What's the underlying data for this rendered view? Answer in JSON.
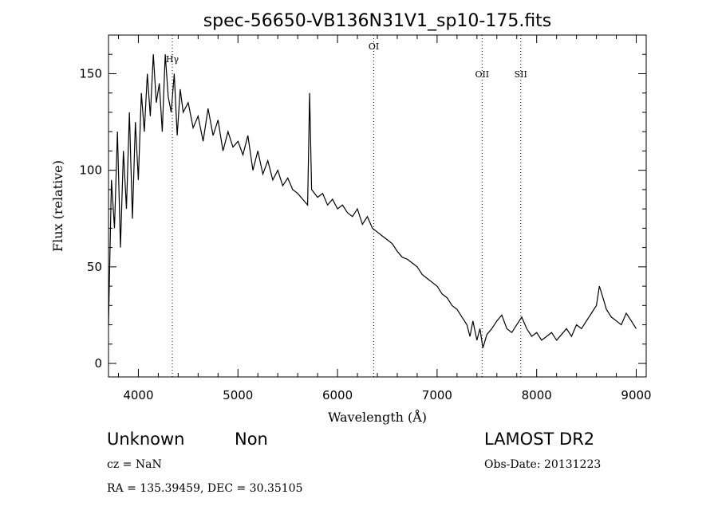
{
  "chart_data": {
    "type": "line",
    "title": "spec-56650-VB136N31V1_sp10-175.fits",
    "xlabel": "Wavelength (Å)",
    "ylabel": "Flux (relative)",
    "xlim": [
      3700,
      9100
    ],
    "ylim": [
      -7,
      170
    ],
    "x_ticks": [
      4000,
      5000,
      6000,
      7000,
      8000,
      9000
    ],
    "y_ticks": [
      0,
      50,
      100,
      150
    ],
    "grid": false,
    "line_markers": [
      {
        "label": "Hγ",
        "x": 4341
      },
      {
        "label": "OI",
        "x": 6364
      },
      {
        "label": "OII",
        "x": 7452
      },
      {
        "label": "SII",
        "x": 7840
      }
    ],
    "series": [
      {
        "x": [
          3700,
          3730,
          3760,
          3790,
          3820,
          3850,
          3880,
          3910,
          3940,
          3970,
          4000,
          4030,
          4060,
          4090,
          4120,
          4150,
          4180,
          4210,
          4240,
          4270,
          4300,
          4330,
          4360,
          4390,
          4420,
          4450,
          4500,
          4550,
          4600,
          4650,
          4700,
          4750,
          4800,
          4850,
          4900,
          4950,
          5000,
          5050,
          5100,
          5150,
          5200,
          5250,
          5300,
          5350,
          5400,
          5450,
          5500,
          5550,
          5600,
          5650,
          5700,
          5720,
          5740,
          5800,
          5850,
          5900,
          5950,
          6000,
          6050,
          6100,
          6150,
          6200,
          6250,
          6300,
          6350,
          6400,
          6450,
          6500,
          6550,
          6600,
          6650,
          6700,
          6750,
          6800,
          6850,
          6900,
          6950,
          7000,
          7050,
          7100,
          7150,
          7200,
          7250,
          7300,
          7330,
          7360,
          7400,
          7430,
          7460,
          7500,
          7550,
          7600,
          7650,
          7700,
          7750,
          7800,
          7850,
          7900,
          7950,
          8000,
          8050,
          8100,
          8150,
          8200,
          8250,
          8300,
          8350,
          8400,
          8450,
          8500,
          8550,
          8600,
          8630,
          8660,
          8700,
          8750,
          8800,
          8850,
          8900,
          8950,
          9000
        ],
        "y": [
          20,
          95,
          70,
          120,
          60,
          110,
          80,
          130,
          75,
          125,
          95,
          140,
          120,
          150,
          128,
          160,
          135,
          145,
          120,
          160,
          138,
          130,
          150,
          118,
          142,
          130,
          135,
          122,
          128,
          115,
          132,
          118,
          126,
          110,
          120,
          112,
          115,
          108,
          118,
          100,
          110,
          98,
          105,
          95,
          100,
          92,
          96,
          90,
          88,
          85,
          82,
          140,
          90,
          86,
          88,
          82,
          85,
          80,
          82,
          78,
          76,
          80,
          72,
          76,
          70,
          68,
          66,
          64,
          62,
          58,
          55,
          54,
          52,
          50,
          46,
          44,
          42,
          40,
          36,
          34,
          30,
          28,
          24,
          20,
          14,
          22,
          12,
          18,
          8,
          15,
          18,
          22,
          25,
          18,
          16,
          20,
          24,
          18,
          14,
          16,
          12,
          14,
          16,
          12,
          15,
          18,
          14,
          20,
          18,
          22,
          26,
          30,
          40,
          35,
          28,
          24,
          22,
          20,
          26,
          22,
          18
        ]
      }
    ]
  },
  "info": {
    "class": "Unknown",
    "subclass": "Non",
    "survey": "LAMOST DR2",
    "cz": "cz = NaN",
    "obs_date": "Obs-Date: 20131223",
    "coords": "RA = 135.39459, DEC =  30.35105"
  }
}
